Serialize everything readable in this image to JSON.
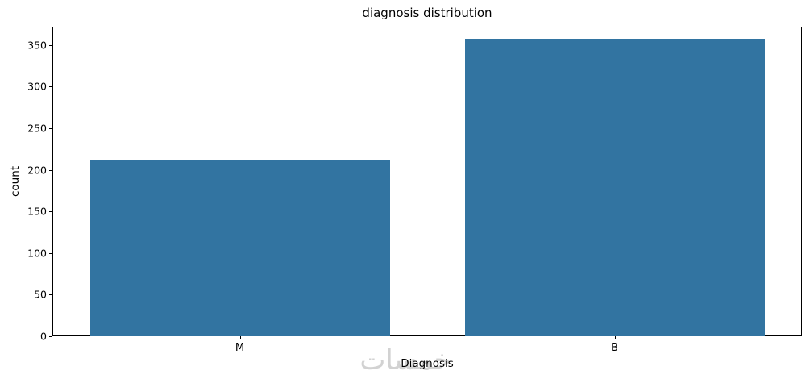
{
  "chart_data": {
    "type": "bar",
    "title": "diagnosis distribution",
    "xlabel": "Diagnosis",
    "ylabel": "count",
    "categories": [
      "M",
      "B"
    ],
    "values": [
      212,
      357
    ],
    "yticks": [
      0,
      50,
      100,
      150,
      200,
      250,
      300,
      350
    ],
    "ylim": [
      0,
      372
    ],
    "bar_color": "#3274a1",
    "grid": false,
    "legend": "none",
    "bar_relative_width": 0.8
  },
  "watermark": {
    "text": "خمسات",
    "color": "#d2d2d2"
  }
}
